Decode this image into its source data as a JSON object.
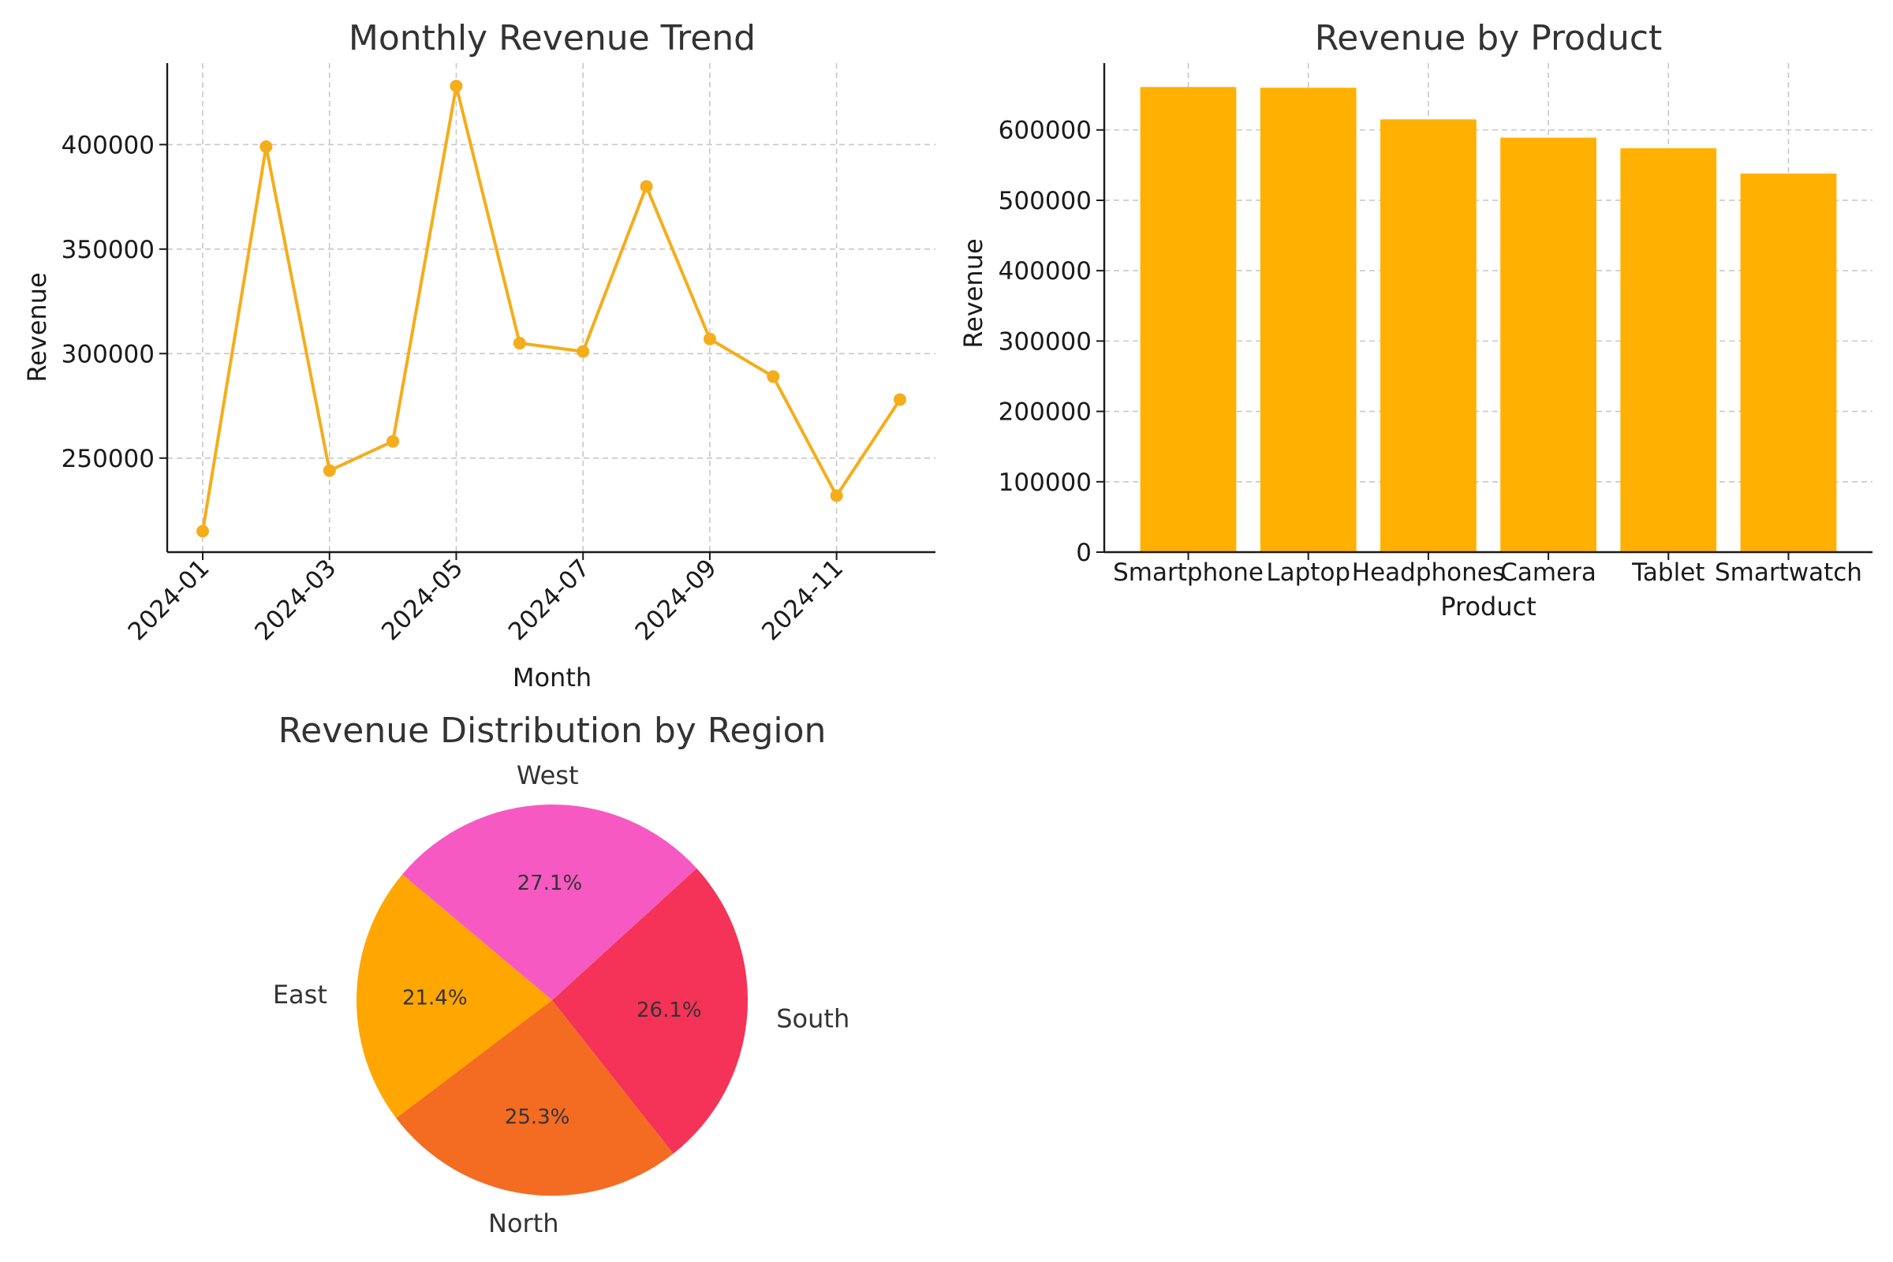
{
  "chart_data": [
    {
      "type": "line",
      "title": "Monthly Revenue Trend",
      "xlabel": "Month",
      "ylabel": "Revenue",
      "x": [
        "2024-01",
        "2024-02",
        "2024-03",
        "2024-04",
        "2024-05",
        "2024-06",
        "2024-07",
        "2024-08",
        "2024-09",
        "2024-10",
        "2024-11",
        "2024-12"
      ],
      "values": [
        215000,
        399000,
        244000,
        258000,
        428000,
        305000,
        301000,
        380000,
        307000,
        289000,
        232000,
        278000
      ],
      "x_tick_labels": [
        "2024-01",
        "2024-03",
        "2024-05",
        "2024-07",
        "2024-09",
        "2024-11"
      ],
      "y_ticks": [
        250000,
        300000,
        350000,
        400000
      ],
      "ylim": [
        205000,
        439000
      ],
      "grid": true,
      "color": "#F5AD1B"
    },
    {
      "type": "bar",
      "title": "Revenue by Product",
      "xlabel": "Product",
      "ylabel": "Revenue",
      "categories": [
        "Smartphone",
        "Laptop",
        "Headphones",
        "Camera",
        "Tablet",
        "Smartwatch"
      ],
      "values": [
        661000,
        660000,
        615000,
        589000,
        574000,
        538000
      ],
      "y_ticks": [
        0,
        100000,
        200000,
        300000,
        400000,
        500000,
        600000
      ],
      "ylim": [
        0,
        695000
      ],
      "grid": true,
      "color": "#FFB000"
    },
    {
      "type": "pie",
      "title": "Revenue Distribution by Region",
      "categories": [
        "East",
        "North",
        "South",
        "West"
      ],
      "values": [
        21.4,
        25.3,
        26.1,
        27.1
      ],
      "labels": [
        "21.4%",
        "25.3%",
        "26.1%",
        "27.1%"
      ],
      "colors": [
        "#FFA600",
        "#F46C22",
        "#F53257",
        "#F65AC2"
      ]
    }
  ]
}
